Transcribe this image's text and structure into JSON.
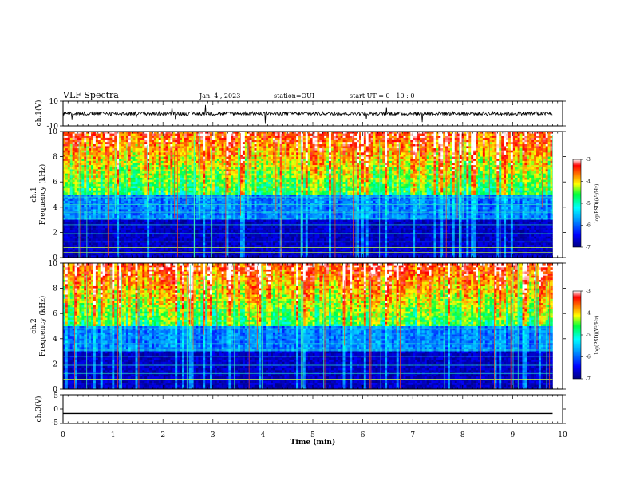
{
  "header": {
    "title": "VLF Spectra",
    "date": "Jan. 4 , 2023",
    "station": "station=OUI",
    "start": "start UT = 0 : 10 : 0"
  },
  "chart_data": [
    {
      "type": "line",
      "name": "ch1-waveform",
      "ylabel": "ch.1(V)",
      "ylim": [
        -10,
        10
      ],
      "yticks": [
        "10",
        "-10"
      ],
      "xlim": [
        0,
        10
      ],
      "trace": {
        "baseline_v": 0,
        "noise_amplitude_v": 1.5,
        "end_min": 9.8
      }
    },
    {
      "type": "heatmap",
      "name": "ch1-spectrogram",
      "ylabel": "ch.1\nFrequency (kHz)",
      "ylabel_line1": "ch.1",
      "ylabel_line2": "Frequency (kHz)",
      "ylim": [
        0,
        10
      ],
      "yticks": [
        "0",
        "2",
        "4",
        "6",
        "8",
        "10"
      ],
      "xlim": [
        0,
        10
      ],
      "data_end_min": 9.8,
      "colorbar": {
        "label": "log(PSD)(V²/Hz)",
        "range": [
          -7,
          -3
        ],
        "ticks": [
          "-3",
          "-4",
          "-5",
          "-6",
          "-7"
        ]
      }
    },
    {
      "type": "heatmap",
      "name": "ch2-spectrogram",
      "ylabel_line1": "ch.2",
      "ylabel_line2": "Frequency (kHz)",
      "ylim": [
        0,
        10
      ],
      "yticks": [
        "0",
        "2",
        "4",
        "6",
        "8",
        "10"
      ],
      "xlim": [
        0,
        10
      ],
      "data_end_min": 9.8,
      "colorbar": {
        "label": "log(PSD)(V²/Hz)",
        "range": [
          -7,
          -3
        ],
        "ticks": [
          "-3",
          "-4",
          "-5",
          "-6",
          "-7"
        ]
      }
    },
    {
      "type": "line",
      "name": "ch3-waveform",
      "ylabel": "ch.3(V)",
      "ylim": [
        -5,
        5
      ],
      "yticks": [
        "5",
        "0",
        "-5"
      ],
      "xlim": [
        0,
        10
      ],
      "trace": {
        "baseline_v": -1.5,
        "noise_amplitude_v": 0,
        "end_min": 9.8
      }
    }
  ],
  "xaxis": {
    "label": "Time (min)",
    "ticks": [
      "0",
      "1",
      "2",
      "3",
      "4",
      "5",
      "6",
      "7",
      "8",
      "9",
      "10"
    ]
  },
  "colors": {
    "trace": "#000000",
    "frame": "#000000"
  }
}
